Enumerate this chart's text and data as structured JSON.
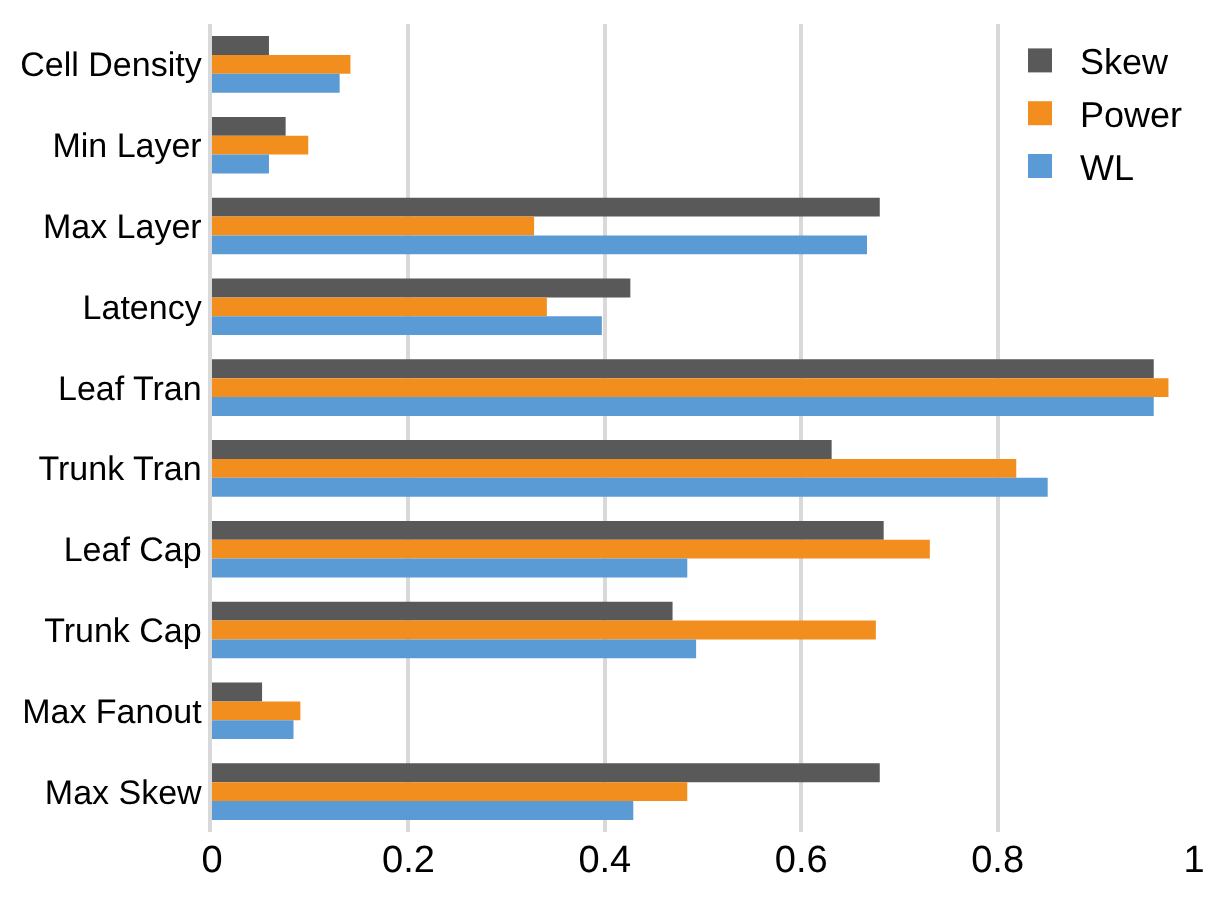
{
  "chart_data": {
    "type": "bar",
    "orientation": "horizontal",
    "categories": [
      "Cell Density",
      "Min Layer",
      "Max Layer",
      "Latency",
      "Leaf Tran",
      "Trunk Tran",
      "Leaf Cap",
      "Trunk Cap",
      "Max Fanout",
      "Max Skew"
    ],
    "series": [
      {
        "name": "Skew",
        "color": "#595959",
        "values": [
          0.058,
          0.075,
          0.68,
          0.426,
          0.959,
          0.631,
          0.684,
          0.469,
          0.051,
          0.68
        ]
      },
      {
        "name": "Power",
        "color": "#f28e1e",
        "values": [
          0.141,
          0.098,
          0.328,
          0.341,
          0.974,
          0.819,
          0.731,
          0.676,
          0.09,
          0.484
        ]
      },
      {
        "name": "WL",
        "color": "#5b9bd5",
        "values": [
          0.13,
          0.058,
          0.667,
          0.397,
          0.959,
          0.851,
          0.484,
          0.493,
          0.083,
          0.429
        ]
      }
    ],
    "xlim": [
      0,
      1
    ],
    "xticks": [
      0,
      0.2,
      0.4,
      0.6,
      0.8,
      1
    ],
    "grid": "x",
    "legend": "top right"
  }
}
